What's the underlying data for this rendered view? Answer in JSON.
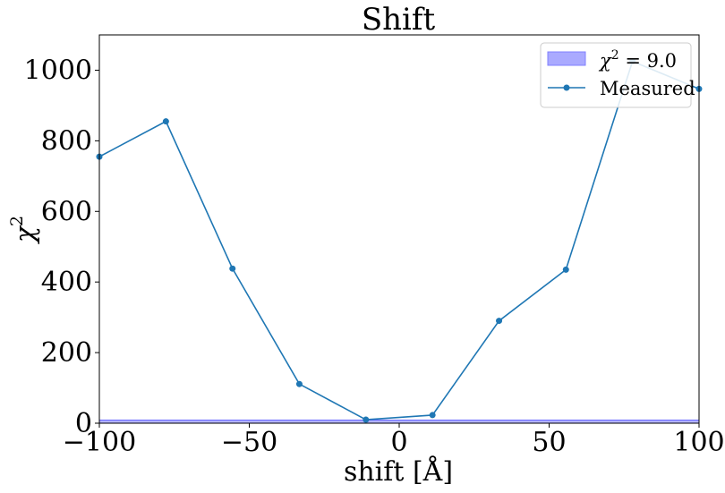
{
  "chart_data": {
    "type": "line",
    "title": "Shift",
    "xlabel": "shift [Å]",
    "ylabel": "χ",
    "ylabel_superscript": "2",
    "xlim": [
      -100,
      100
    ],
    "ylim": [
      0,
      1100
    ],
    "x_ticks": [
      -100,
      -50,
      0,
      50,
      100
    ],
    "x_tick_labels": [
      "−100",
      "−50",
      "0",
      "50",
      "100"
    ],
    "y_ticks": [
      0,
      200,
      400,
      600,
      800,
      1000
    ],
    "y_tick_labels": [
      "0",
      "200",
      "400",
      "600",
      "800",
      "1000"
    ],
    "grid": false,
    "legend_position": "top-right",
    "band": {
      "legend_label": "χ",
      "legend_superscript": "2",
      "legend_suffix": " = 9.0",
      "ymin": 0,
      "ymax": 9.0,
      "color": "#aaaaff"
    },
    "series": [
      {
        "name": "Measured",
        "color": "#1f77b4",
        "x": [
          -100,
          -77.8,
          -55.6,
          -33.3,
          -11.1,
          11.1,
          33.3,
          55.6,
          77.8,
          100
        ],
        "y": [
          755,
          855,
          438,
          111,
          10,
          23,
          290,
          435,
          1025,
          947
        ]
      }
    ]
  }
}
